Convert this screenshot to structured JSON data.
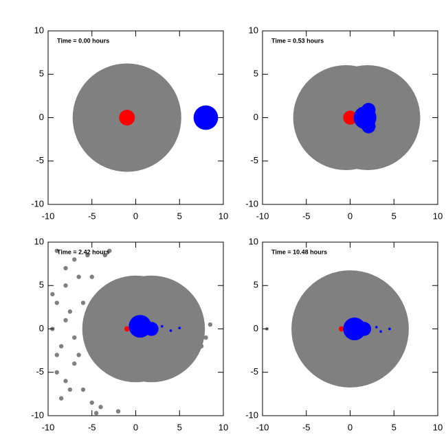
{
  "chart_data": [
    {
      "type": "scatter",
      "title": "Time =  0.00 hours",
      "xlim": [
        -10,
        10
      ],
      "ylim": [
        -10,
        10
      ],
      "xticks": [
        -10,
        -5,
        0,
        5,
        10
      ],
      "yticks": [
        -10,
        -5,
        0,
        5,
        10
      ],
      "series": [
        {
          "color": "#808080",
          "x": [
            -1
          ],
          "y": [
            0
          ],
          "size": 6.2
        },
        {
          "color": "#ff0000",
          "x": [
            -1
          ],
          "y": [
            0
          ],
          "size": 0.9
        },
        {
          "color": "#0000ff",
          "x": [
            8
          ],
          "y": [
            0
          ],
          "size": 1.4
        }
      ]
    },
    {
      "type": "scatter",
      "title": "Time =  0.53 hours",
      "xlim": [
        -10,
        10
      ],
      "ylim": [
        -10,
        10
      ],
      "xticks": [
        -10,
        -5,
        0,
        5,
        10
      ],
      "yticks": [
        -10,
        -5,
        0,
        5,
        10
      ],
      "series": [
        {
          "color": "#808080",
          "x": [
            -0.5,
            2
          ],
          "y": [
            0,
            0
          ],
          "size": 6
        },
        {
          "color": "#808080",
          "x": [
            5,
            6,
            6.5,
            7,
            6.5,
            6,
            5.5,
            7,
            4.5,
            4,
            7.2
          ],
          "y": [
            2.5,
            2,
            1.5,
            -2,
            -1,
            3,
            -3,
            -1.5,
            3.5,
            -4,
            -2.5
          ],
          "size": 0.25
        },
        {
          "color": "#ff0000",
          "x": [
            0
          ],
          "y": [
            0
          ],
          "size": 0.8
        },
        {
          "color": "#0000ff",
          "x": [
            1.7
          ],
          "y": [
            0
          ],
          "size": 1.3
        },
        {
          "color": "#0000ff",
          "x": [
            2.1,
            2.1
          ],
          "y": [
            0.9,
            -1
          ],
          "size": 0.8
        }
      ]
    },
    {
      "type": "scatter",
      "title": "Time =  2.42 hours",
      "xlim": [
        -10,
        10
      ],
      "ylim": [
        -10,
        10
      ],
      "xticks": [
        -10,
        -5,
        0,
        5,
        10
      ],
      "yticks": [
        -10,
        -5,
        0,
        5,
        10
      ],
      "series": [
        {
          "color": "#808080",
          "x": [
            0,
            1.8
          ],
          "y": [
            0,
            0
          ],
          "size": 6.1
        },
        {
          "color": "#808080",
          "x": [
            -9,
            -8.5,
            -8,
            -9.5,
            -7,
            -7.5,
            -6.5,
            -8,
            -9,
            -6,
            -7,
            -5.5,
            -8.5,
            -9.5,
            -7,
            -6,
            -5,
            -8,
            -9,
            -7.5,
            -6.5,
            -5,
            -4,
            -3.5,
            -8,
            -9,
            7,
            8,
            7.5,
            8.5,
            6.5,
            -2,
            -3,
            -4.5
          ],
          "y": [
            3,
            -2,
            5,
            0,
            -4,
            2,
            6,
            -6,
            -5,
            -7,
            8,
            8.5,
            -8,
            4,
            -1,
            3,
            -8.5,
            1,
            -3,
            -7,
            -3,
            6,
            -9,
            8.5,
            7,
            9,
            1,
            -1,
            -2,
            0.5,
            3,
            -9.5,
            9,
            -9.7
          ],
          "size": 0.25
        },
        {
          "color": "#ff0000",
          "x": [
            -1
          ],
          "y": [
            0
          ],
          "size": 0.3
        },
        {
          "color": "#0000ff",
          "x": [
            0.5
          ],
          "y": [
            0.3
          ],
          "size": 1.3
        },
        {
          "color": "#0000ff",
          "x": [
            1.8
          ],
          "y": [
            0
          ],
          "size": 0.8
        },
        {
          "color": "#0000ff",
          "x": [
            3,
            4,
            5
          ],
          "y": [
            0.3,
            -0.2,
            0.1
          ],
          "size": 0.15
        }
      ]
    },
    {
      "type": "scatter",
      "title": "Time = 10.48 hours",
      "xlim": [
        -10,
        10
      ],
      "ylim": [
        -10,
        10
      ],
      "xticks": [
        -10,
        -5,
        0,
        5,
        10
      ],
      "yticks": [
        -10,
        -5,
        0,
        5,
        10
      ],
      "series": [
        {
          "color": "#808080",
          "x": [
            0
          ],
          "y": [
            0
          ],
          "size": 6.7
        },
        {
          "color": "#808080",
          "x": [
            -9.5
          ],
          "y": [
            0
          ],
          "size": 0.2
        },
        {
          "color": "#ff0000",
          "x": [
            -1
          ],
          "y": [
            0
          ],
          "size": 0.3
        },
        {
          "color": "#0000ff",
          "x": [
            0.5
          ],
          "y": [
            0
          ],
          "size": 1.3
        },
        {
          "color": "#0000ff",
          "x": [
            1.6
          ],
          "y": [
            0
          ],
          "size": 0.8
        },
        {
          "color": "#0000ff",
          "x": [
            3,
            3.5,
            4.5
          ],
          "y": [
            0.2,
            -0.3,
            0
          ],
          "size": 0.15
        }
      ]
    }
  ]
}
